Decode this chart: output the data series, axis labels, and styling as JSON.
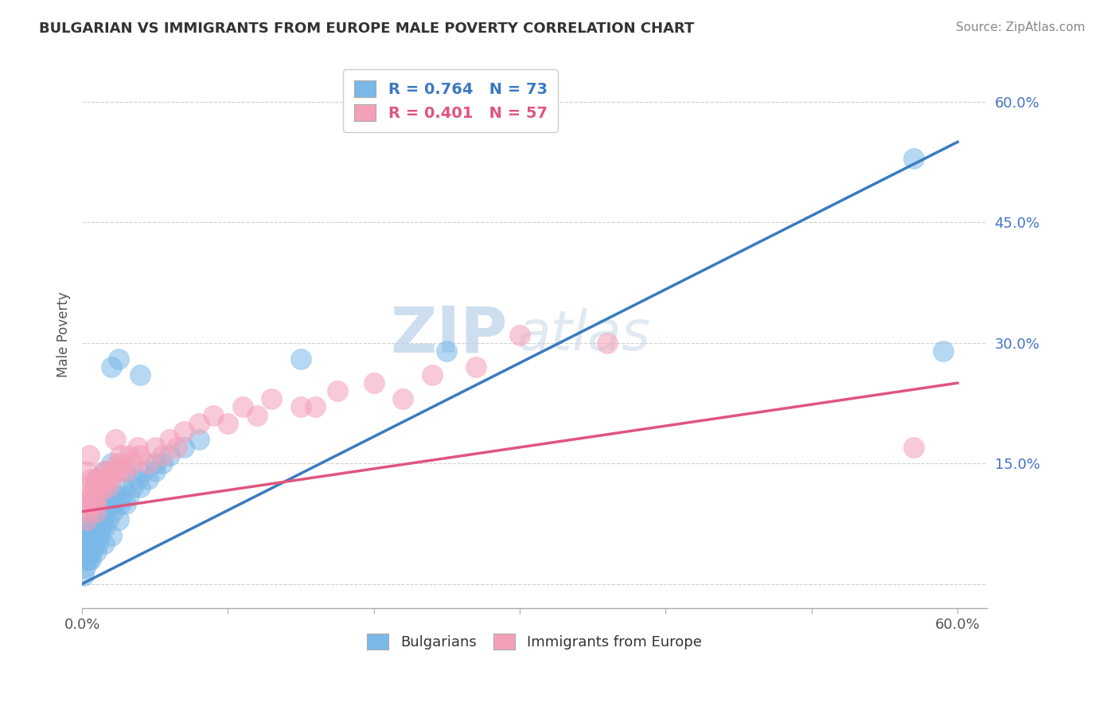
{
  "title": "BULGARIAN VS IMMIGRANTS FROM EUROPE MALE POVERTY CORRELATION CHART",
  "source": "Source: ZipAtlas.com",
  "ylabel": "Male Poverty",
  "yticks": [
    0.0,
    0.15,
    0.3,
    0.45,
    0.6
  ],
  "ytick_labels": [
    "",
    "15.0%",
    "30.0%",
    "45.0%",
    "60.0%"
  ],
  "xlim": [
    0.0,
    0.62
  ],
  "ylim": [
    -0.03,
    0.65
  ],
  "blue_R": "0.764",
  "blue_N": "73",
  "pink_R": "0.401",
  "pink_N": "57",
  "blue_color": "#7ab8e8",
  "pink_color": "#f4a0b8",
  "blue_line_color": "#3a7abf",
  "pink_line_color": "#e05580",
  "watermark_zip": "ZIP",
  "watermark_atlas": "atlas",
  "legend_label_blue": "Bulgarians",
  "legend_label_pink": "Immigrants from Europe",
  "blue_line_x": [
    0.0,
    0.6
  ],
  "blue_line_y": [
    0.0,
    0.55
  ],
  "pink_line_x": [
    0.0,
    0.6
  ],
  "pink_line_y": [
    0.09,
    0.25
  ],
  "blue_scatter_x": [
    0.001,
    0.002,
    0.002,
    0.003,
    0.003,
    0.003,
    0.004,
    0.004,
    0.004,
    0.005,
    0.005,
    0.005,
    0.005,
    0.006,
    0.006,
    0.006,
    0.007,
    0.007,
    0.008,
    0.008,
    0.008,
    0.009,
    0.009,
    0.01,
    0.01,
    0.01,
    0.011,
    0.011,
    0.012,
    0.012,
    0.013,
    0.013,
    0.014,
    0.015,
    0.015,
    0.015,
    0.016,
    0.017,
    0.018,
    0.019,
    0.02,
    0.02,
    0.021,
    0.022,
    0.023,
    0.025,
    0.026,
    0.027,
    0.028,
    0.03,
    0.032,
    0.035,
    0.038,
    0.04,
    0.042,
    0.045,
    0.05,
    0.055,
    0.06,
    0.07,
    0.08,
    0.02,
    0.025,
    0.03,
    0.01,
    0.015,
    0.02,
    0.04,
    0.05,
    0.57,
    0.59,
    0.25,
    0.15
  ],
  "blue_scatter_y": [
    0.01,
    0.02,
    0.04,
    0.03,
    0.05,
    0.06,
    0.04,
    0.05,
    0.07,
    0.03,
    0.04,
    0.06,
    0.08,
    0.03,
    0.05,
    0.07,
    0.04,
    0.06,
    0.05,
    0.07,
    0.09,
    0.06,
    0.08,
    0.04,
    0.06,
    0.09,
    0.05,
    0.08,
    0.06,
    0.09,
    0.07,
    0.1,
    0.08,
    0.05,
    0.07,
    0.1,
    0.09,
    0.1,
    0.08,
    0.11,
    0.06,
    0.1,
    0.09,
    0.1,
    0.11,
    0.08,
    0.1,
    0.11,
    0.12,
    0.1,
    0.11,
    0.12,
    0.13,
    0.12,
    0.14,
    0.13,
    0.14,
    0.15,
    0.16,
    0.17,
    0.18,
    0.27,
    0.28,
    0.14,
    0.13,
    0.14,
    0.15,
    0.26,
    0.15,
    0.53,
    0.29,
    0.29,
    0.28
  ],
  "pink_scatter_x": [
    0.001,
    0.002,
    0.003,
    0.003,
    0.004,
    0.005,
    0.005,
    0.006,
    0.006,
    0.007,
    0.008,
    0.008,
    0.009,
    0.01,
    0.01,
    0.011,
    0.012,
    0.013,
    0.014,
    0.015,
    0.016,
    0.017,
    0.018,
    0.02,
    0.022,
    0.023,
    0.024,
    0.025,
    0.026,
    0.028,
    0.03,
    0.032,
    0.035,
    0.038,
    0.04,
    0.045,
    0.05,
    0.055,
    0.06,
    0.065,
    0.07,
    0.08,
    0.09,
    0.1,
    0.11,
    0.12,
    0.13,
    0.15,
    0.16,
    0.175,
    0.2,
    0.22,
    0.24,
    0.27,
    0.3,
    0.36,
    0.57
  ],
  "pink_scatter_y": [
    0.1,
    0.12,
    0.08,
    0.14,
    0.09,
    0.11,
    0.16,
    0.1,
    0.13,
    0.11,
    0.1,
    0.12,
    0.1,
    0.09,
    0.13,
    0.11,
    0.12,
    0.13,
    0.12,
    0.14,
    0.13,
    0.14,
    0.12,
    0.13,
    0.14,
    0.18,
    0.15,
    0.14,
    0.16,
    0.15,
    0.14,
    0.16,
    0.15,
    0.17,
    0.16,
    0.15,
    0.17,
    0.16,
    0.18,
    0.17,
    0.19,
    0.2,
    0.21,
    0.2,
    0.22,
    0.21,
    0.23,
    0.22,
    0.22,
    0.24,
    0.25,
    0.23,
    0.26,
    0.27,
    0.31,
    0.3,
    0.17
  ]
}
